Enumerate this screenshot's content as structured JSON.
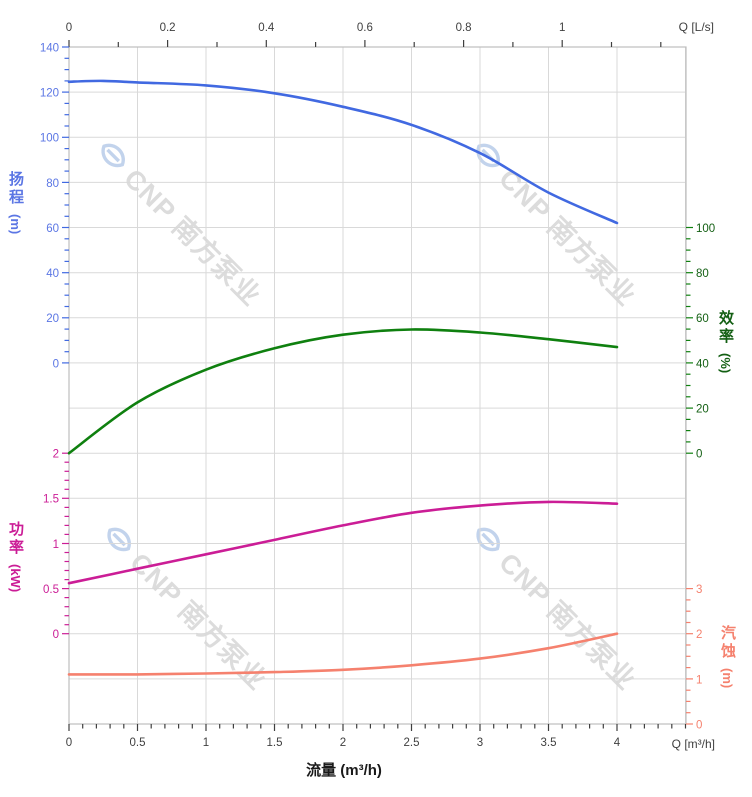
{
  "chart_data": {
    "type": "line",
    "title": "",
    "x_axis_bottom": {
      "label": "流量 (m³/h)",
      "unit_label": "Q [m³/h]",
      "ticks": [
        0,
        0.5,
        1,
        1.5,
        2,
        2.5,
        3,
        3.5,
        4
      ],
      "minor_step": 0.1,
      "max_visible": 4.5,
      "tick_color": "#3f3f3f"
    },
    "x_axis_top": {
      "unit_label": "Q [L/s]",
      "ticks": [
        0,
        0.2,
        0.4,
        0.6,
        0.8,
        1
      ],
      "minor_step": 0.1,
      "max_visible": 1.25,
      "m3h_per_ls": 3.6,
      "tick_color": "#3f3f3f"
    },
    "y_axes": [
      {
        "id": "head",
        "title": "扬程",
        "unit": "(m)",
        "side": "left",
        "color": "#4169e1",
        "label_color": "#5b76e4",
        "ticks": [
          140,
          120,
          100,
          80,
          60,
          40,
          20,
          0
        ],
        "minor_step": 5
      },
      {
        "id": "eff",
        "title": "效率",
        "unit": "(%)",
        "side": "right",
        "color": "#0f800f",
        "label_color": "#135f13",
        "ticks": [
          100,
          80,
          60,
          40,
          20,
          0
        ],
        "minor_step": 5
      },
      {
        "id": "power",
        "title": "功率",
        "unit": "(kW)",
        "side": "left",
        "color": "#cb1d96",
        "label_color": "#cb1d96",
        "ticks": [
          2,
          1.5,
          1,
          0.5,
          0
        ],
        "minor_step": 0.1
      },
      {
        "id": "npsh",
        "title": "汽蚀",
        "unit": "(m)",
        "side": "right",
        "color": "#f5816e",
        "label_color": "#f5816e",
        "ticks": [
          3,
          2,
          1,
          0
        ],
        "minor_step": 0.25
      }
    ],
    "series": [
      {
        "name": "head-curve",
        "axis": "head",
        "color": "#4169e1",
        "x": [
          0,
          0.25,
          0.5,
          1,
          1.5,
          2,
          2.5,
          3,
          3.5,
          4
        ],
        "values": [
          124.6,
          125,
          124.3,
          123,
          119.5,
          113.5,
          105.5,
          93,
          75.5,
          62
        ]
      },
      {
        "name": "efficiency-curve",
        "axis": "eff",
        "color": "#0f800f",
        "x": [
          0,
          0.5,
          1,
          1.5,
          2,
          2.5,
          3,
          3.5,
          4
        ],
        "values": [
          0,
          22.5,
          37,
          46.5,
          52.5,
          54.8,
          53.5,
          50.5,
          47
        ]
      },
      {
        "name": "power-curve",
        "axis": "power",
        "color": "#cb1d96",
        "x": [
          0,
          0.5,
          1,
          1.5,
          2,
          2.5,
          3,
          3.5,
          4
        ],
        "values": [
          0.56,
          0.72,
          0.88,
          1.04,
          1.2,
          1.34,
          1.42,
          1.46,
          1.44
        ]
      },
      {
        "name": "npsh-curve",
        "axis": "npsh",
        "color": "#f5816e",
        "x": [
          0,
          0.5,
          1,
          1.5,
          2,
          2.5,
          3,
          3.5,
          4
        ],
        "values": [
          1.1,
          1.1,
          1.12,
          1.15,
          1.2,
          1.3,
          1.45,
          1.68,
          2.0
        ]
      }
    ],
    "grid": {
      "on": true,
      "color": "#d9d9d9",
      "border_color": "#bdbdbd"
    },
    "legend_position": "none",
    "watermark": {
      "text": "CNP 南方泵业",
      "logo_color": "#c2d3ec",
      "text_color": "#dcdcdc"
    }
  }
}
